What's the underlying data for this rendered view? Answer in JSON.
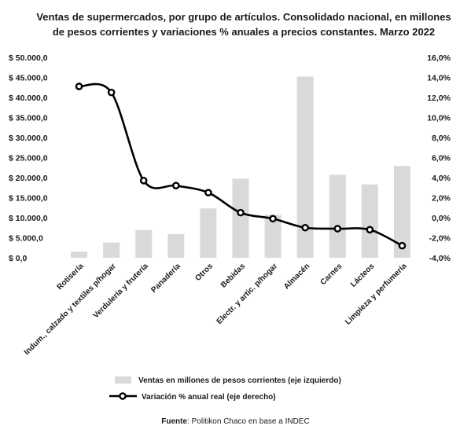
{
  "chart_data": {
    "type": "bar",
    "title": "Ventas de supermercados, por grupo de artículos. Consolidado nacional, en millones de pesos corrientes y variaciones % anuales a precios constantes. Marzo 2022",
    "categories": [
      "Rotisería",
      "Indum., calzado y textiles p/hogar",
      "Verdulería y frutería",
      "Panadería",
      "Otros",
      "Bebidas",
      "Electr. y artic. p/hogar",
      "Almacén",
      "Carnes",
      "Lácteos",
      "Limpieza y perfumería"
    ],
    "series": [
      {
        "name": "Ventas en millones de pesos corrientes (eje izquierdo)",
        "type": "bar",
        "axis": "left",
        "values": [
          1500,
          3800,
          6900,
          5900,
          12300,
          19700,
          10700,
          45200,
          20700,
          18300,
          22900
        ]
      },
      {
        "name": "Variación % anual real (eje derecho)",
        "type": "line",
        "axis": "right",
        "values": [
          13.1,
          12.5,
          3.7,
          3.2,
          2.5,
          0.5,
          -0.1,
          -1.0,
          -1.1,
          -1.2,
          -2.8
        ]
      }
    ],
    "y_left": {
      "min": 0,
      "max": 50000,
      "step": 5000,
      "tick_labels": [
        "$ 0,0",
        "$ 5.000,0",
        "$ 10.000,0",
        "$ 15.000,0",
        "$ 20.000,0",
        "$ 25.000,0",
        "$ 30.000,0",
        "$ 35.000,0",
        "$ 40.000,0",
        "$ 45.000,0",
        "$ 50.000,0"
      ]
    },
    "y_right": {
      "min": -4,
      "max": 16,
      "step": 2,
      "tick_labels": [
        "-4,0%",
        "-2,0%",
        "0,0%",
        "2,0%",
        "4,0%",
        "6,0%",
        "8,0%",
        "10,0%",
        "12,0%",
        "14,0%",
        "16,0%"
      ]
    },
    "grid": false,
    "legend_position": "bottom",
    "colors": {
      "bar": "#d9d9d9",
      "line": "#000000",
      "marker_fill": "#ffffff"
    }
  },
  "source": {
    "label": "Fuente",
    "text": ": Politikon Chaco en base a INDEC"
  }
}
